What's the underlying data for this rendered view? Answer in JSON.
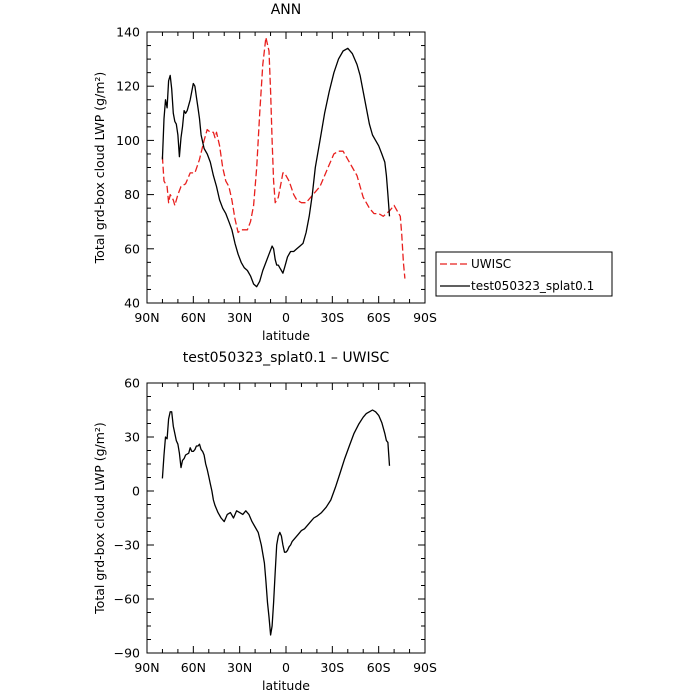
{
  "chart_data": [
    {
      "type": "line",
      "title": "ANN",
      "xlabel": "latitude",
      "ylabel": "Total grd-box cloud LWP (g/m²)",
      "xlim": [
        90,
        -90
      ],
      "ylim": [
        40,
        140
      ],
      "xticks": [
        90,
        60,
        30,
        0,
        -30,
        -60,
        -90
      ],
      "xticklabels": [
        "90N",
        "60N",
        "30N",
        "0",
        "30S",
        "60S",
        "90S"
      ],
      "yticks": [
        40,
        60,
        80,
        100,
        120,
        140
      ],
      "yticklabels": [
        "40",
        "60",
        "80",
        "100",
        "120",
        "140"
      ],
      "grid": false,
      "legend": "right",
      "series": [
        {
          "name": "UWISC",
          "color": "#e8201e",
          "dash": "dashed",
          "x": [
            80,
            79,
            77,
            76,
            75,
            73,
            72,
            70,
            68,
            65,
            62,
            59,
            56,
            53,
            51,
            49,
            47,
            46,
            45,
            43,
            41,
            39,
            37,
            35,
            33,
            31,
            29,
            27,
            25,
            23,
            21,
            19,
            17,
            15,
            13,
            11,
            10,
            9,
            8,
            7,
            5,
            3,
            2,
            1,
            0,
            -2,
            -5,
            -7,
            -10,
            -13,
            -16,
            -19,
            -22,
            -25,
            -28,
            -31,
            -34,
            -37,
            -40,
            -43,
            -46,
            -48,
            -50,
            -52,
            -54,
            -57,
            -60,
            -63,
            -65,
            -67,
            -70,
            -72,
            -74,
            -75,
            -76,
            -77
          ],
          "y": [
            94,
            85,
            83,
            77,
            80,
            78,
            76,
            80,
            83,
            84,
            88,
            88,
            93,
            100,
            104,
            103,
            103,
            101,
            103,
            98,
            90,
            85,
            83,
            78,
            71,
            66,
            67,
            67,
            67,
            70,
            76,
            90,
            110,
            128,
            138,
            133,
            118,
            100,
            85,
            77,
            79,
            85,
            88,
            88,
            87,
            85,
            80,
            78,
            77,
            77,
            79,
            81,
            83,
            87,
            91,
            95,
            96,
            96,
            93,
            90,
            87,
            83,
            79,
            77,
            75,
            73,
            73,
            72,
            73,
            74,
            76,
            74,
            72,
            65,
            55,
            49
          ]
        },
        {
          "name": "test050323_splat0.1",
          "color": "#000000",
          "dash": "solid",
          "x": [
            80,
            79,
            78,
            77,
            76,
            75,
            74,
            73,
            72,
            71,
            70,
            69,
            68,
            67,
            66,
            65,
            64,
            62,
            60,
            59,
            58,
            57,
            56,
            55,
            53,
            51,
            49,
            47,
            45,
            43,
            41,
            39,
            37,
            35,
            33,
            31,
            29,
            27,
            25,
            23,
            21,
            19,
            17,
            15,
            13,
            11,
            9,
            8,
            7,
            6,
            5,
            4,
            3,
            2,
            1,
            0,
            -1,
            -3,
            -5,
            -7,
            -9,
            -11,
            -13,
            -15,
            -17,
            -19,
            -22,
            -25,
            -28,
            -31,
            -34,
            -37,
            -40,
            -43,
            -46,
            -48,
            -50,
            -52,
            -54,
            -56,
            -58,
            -60,
            -62,
            -64,
            -65,
            -66,
            -67
          ],
          "y": [
            93,
            108,
            115,
            112,
            122,
            124,
            119,
            110,
            107,
            106,
            102,
            94,
            101,
            105,
            111,
            110,
            111,
            115,
            121,
            120,
            116,
            112,
            108,
            102,
            97,
            95,
            92,
            87,
            83,
            78,
            75,
            73,
            70,
            67,
            62,
            58,
            55,
            53,
            52,
            50,
            47,
            46,
            48,
            52,
            55,
            58,
            61,
            60,
            56,
            54,
            54,
            53,
            52,
            51,
            53,
            55,
            57,
            59,
            59,
            60,
            61,
            62,
            66,
            72,
            80,
            90,
            100,
            110,
            118,
            125,
            130,
            133,
            134,
            132,
            128,
            124,
            118,
            112,
            106,
            102,
            100,
            98,
            95,
            92,
            87,
            80,
            72
          ]
        }
      ]
    },
    {
      "type": "line",
      "title": "test050323_splat0.1 – UWISC",
      "xlabel": "latitude",
      "ylabel": "Total grd-box cloud LWP (g/m²)",
      "xlim": [
        90,
        -90
      ],
      "ylim": [
        -90,
        60
      ],
      "xticks": [
        90,
        60,
        30,
        0,
        -30,
        -60,
        -90
      ],
      "xticklabels": [
        "90N",
        "60N",
        "30N",
        "0",
        "30S",
        "60S",
        "90S"
      ],
      "yticks": [
        -90,
        -60,
        -30,
        0,
        30,
        60
      ],
      "yticklabels": [
        "−90",
        "−60",
        "−30",
        "0",
        "30",
        "60"
      ],
      "grid": false,
      "series": [
        {
          "color": "#000000",
          "dash": "solid",
          "x": [
            80,
            79,
            78,
            77,
            76,
            75,
            74,
            73,
            72,
            71,
            70,
            69,
            68,
            67,
            66,
            65,
            63,
            62,
            61,
            60,
            59,
            58,
            57,
            56,
            55,
            54,
            53,
            52,
            51,
            50,
            49,
            48,
            47,
            46,
            44,
            42,
            40,
            38,
            36,
            34,
            32,
            30,
            28,
            26,
            24,
            22,
            20,
            18,
            16,
            14,
            13,
            12,
            11,
            10,
            9,
            8,
            7,
            6,
            5,
            4,
            3,
            2,
            1,
            0,
            -1,
            -2,
            -3,
            -4,
            -6,
            -8,
            -10,
            -12,
            -14,
            -16,
            -18,
            -20,
            -23,
            -26,
            -29,
            -32,
            -35,
            -38,
            -41,
            -44,
            -47,
            -50,
            -52,
            -54,
            -56,
            -58,
            -60,
            -62,
            -64,
            -65,
            -66,
            -67
          ],
          "y": [
            7,
            20,
            30,
            29,
            40,
            44,
            44,
            36,
            32,
            28,
            26,
            21,
            13,
            17,
            18,
            20,
            21,
            24,
            22,
            22,
            23,
            25,
            25,
            26,
            23,
            22,
            20,
            15,
            12,
            8,
            4,
            0,
            -5,
            -8,
            -12,
            -15,
            -17,
            -13,
            -12,
            -15,
            -11,
            -12,
            -13,
            -11,
            -13,
            -17,
            -20,
            -23,
            -30,
            -40,
            -50,
            -62,
            -70,
            -80,
            -75,
            -62,
            -45,
            -30,
            -25,
            -23,
            -25,
            -30,
            -34,
            -34,
            -33,
            -31,
            -30,
            -28,
            -26,
            -24,
            -22,
            -21,
            -19,
            -17,
            -15,
            -14,
            -12,
            -9,
            -5,
            2,
            10,
            18,
            25,
            32,
            37,
            41,
            43,
            44,
            45,
            44,
            42,
            38,
            32,
            28,
            27,
            14
          ]
        }
      ]
    }
  ]
}
